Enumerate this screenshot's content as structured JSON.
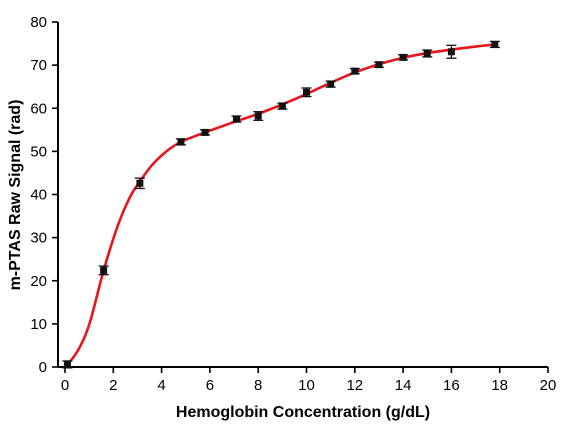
{
  "chart_data": {
    "type": "scatter",
    "xlabel": "Hemoglobin Concentration (g/dL)",
    "ylabel": "m-PTAS Raw Signal (rad)",
    "xlim": [
      0,
      20
    ],
    "ylim": [
      0,
      80
    ],
    "xticks": [
      0,
      2,
      4,
      6,
      8,
      10,
      12,
      14,
      16,
      18,
      20
    ],
    "yticks": [
      0,
      10,
      20,
      30,
      40,
      50,
      60,
      70,
      80
    ],
    "grid": false,
    "legend": "none",
    "series": [
      {
        "kind": "points-with-error-bars",
        "color": "#111111",
        "points": [
          {
            "x": 0.1,
            "y": 0.6,
            "err": 0.8
          },
          {
            "x": 1.6,
            "y": 22.4,
            "err": 1.0
          },
          {
            "x": 3.1,
            "y": 42.6,
            "err": 1.2
          },
          {
            "x": 4.8,
            "y": 52.2,
            "err": 0.7
          },
          {
            "x": 5.8,
            "y": 54.4,
            "err": 0.6
          },
          {
            "x": 7.1,
            "y": 57.5,
            "err": 0.7
          },
          {
            "x": 8.0,
            "y": 58.2,
            "err": 1.0
          },
          {
            "x": 9.0,
            "y": 60.5,
            "err": 0.7
          },
          {
            "x": 10.0,
            "y": 63.7,
            "err": 1.0
          },
          {
            "x": 11.0,
            "y": 65.6,
            "err": 0.7
          },
          {
            "x": 12.0,
            "y": 68.6,
            "err": 0.6
          },
          {
            "x": 13.0,
            "y": 70.1,
            "err": 0.6
          },
          {
            "x": 14.0,
            "y": 71.8,
            "err": 0.6
          },
          {
            "x": 15.0,
            "y": 72.7,
            "err": 0.8
          },
          {
            "x": 16.0,
            "y": 73.1,
            "err": 1.5
          },
          {
            "x": 17.8,
            "y": 74.8,
            "err": 0.7
          }
        ]
      },
      {
        "kind": "fit-curve",
        "color": "#e8141c",
        "points": [
          {
            "x": 0.0,
            "y": 0.0
          },
          {
            "x": 0.5,
            "y": 3.5
          },
          {
            "x": 1.0,
            "y": 9.8
          },
          {
            "x": 1.6,
            "y": 22.4
          },
          {
            "x": 2.2,
            "y": 33.0
          },
          {
            "x": 2.7,
            "y": 39.5
          },
          {
            "x": 3.1,
            "y": 43.0
          },
          {
            "x": 3.6,
            "y": 46.8
          },
          {
            "x": 4.2,
            "y": 50.0
          },
          {
            "x": 4.8,
            "y": 52.2
          },
          {
            "x": 5.8,
            "y": 54.4
          },
          {
            "x": 7.1,
            "y": 57.0
          },
          {
            "x": 8.0,
            "y": 58.7
          },
          {
            "x": 9.0,
            "y": 60.9
          },
          {
            "x": 10.0,
            "y": 63.3
          },
          {
            "x": 11.0,
            "y": 65.9
          },
          {
            "x": 12.0,
            "y": 68.3
          },
          {
            "x": 13.0,
            "y": 70.2
          },
          {
            "x": 14.0,
            "y": 71.7
          },
          {
            "x": 15.0,
            "y": 72.8
          },
          {
            "x": 16.0,
            "y": 73.6
          },
          {
            "x": 17.0,
            "y": 74.3
          },
          {
            "x": 17.8,
            "y": 74.8
          }
        ]
      }
    ]
  }
}
